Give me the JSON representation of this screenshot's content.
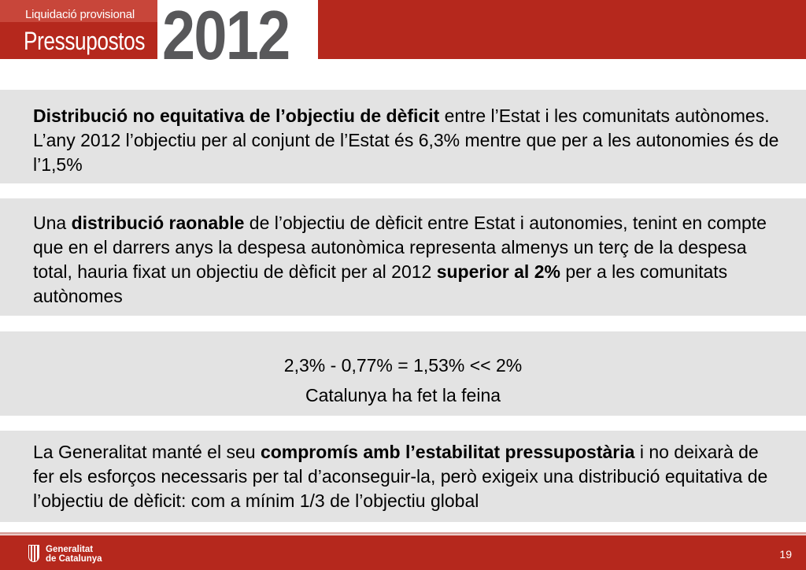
{
  "header": {
    "subtitle": "Liquidació provisional",
    "title": "Pressupostos",
    "year": "2012"
  },
  "box1": {
    "bold_lead": "Distribució no equitativa de l’objectiu de dèficit",
    "rest": " entre l’Estat i les comunitats autònomes. L’any 2012 l’objectiu per al conjunt de l’Estat és 6,3% mentre que per a les autonomies és de l’1,5%"
  },
  "box2": {
    "t1": "Una ",
    "b1": "distribució raonable",
    "t2": " de l’objectiu de dèficit entre Estat i autonomies, tenint en compte que en el darrers anys la despesa autonòmica representa almenys un terç de la despesa total, hauria fixat un objectiu de dèficit per al 2012 ",
    "b2": "superior al 2%",
    "t3": " per a les comunitats autònomes"
  },
  "box3": {
    "line1": "2,3% - 0,77% = 1,53% << 2%",
    "line2": "Catalunya ha fet la feina"
  },
  "box4": {
    "t1": "La Generalitat manté el seu ",
    "b1": "compromís amb l’estabilitat pressupostària",
    "t2": " i no deixarà de fer els esforços necessaris per tal d’aconseguir-la, però exigeix una distribució equitativa de l’objectiu de dèficit: com a mínim 1/3 de l’objectiu global"
  },
  "footer": {
    "logo_line1": "Generalitat",
    "logo_line2": "de Catalunya",
    "page_number": "19"
  }
}
